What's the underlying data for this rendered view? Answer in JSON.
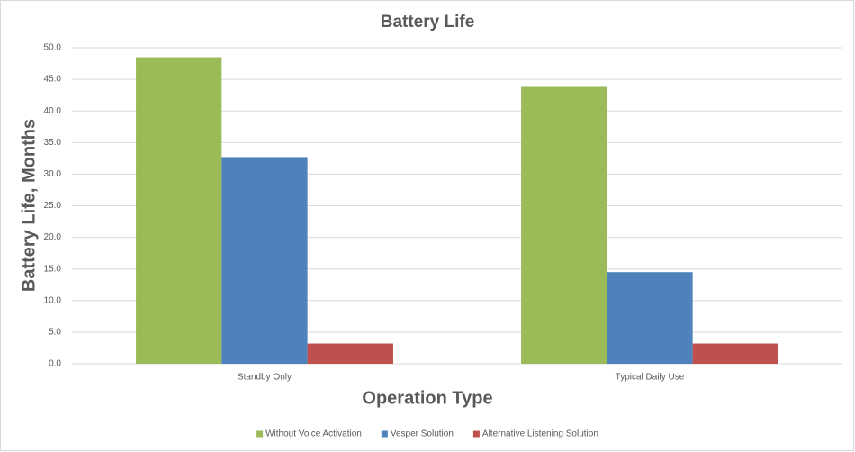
{
  "chart_data": {
    "type": "bar",
    "title": "Battery Life",
    "x_label": "Operation Type",
    "y_label": "Battery Life, Months",
    "categories": [
      "Standby Only",
      "Typical Daily Use"
    ],
    "series": [
      {
        "name": "Without Voice Activation",
        "color": "#9bbb59",
        "values": [
          48.5,
          43.8
        ]
      },
      {
        "name": "Vesper Solution",
        "color": "#4f81bd",
        "values": [
          32.7,
          14.5
        ]
      },
      {
        "name": "Alternative Listening Solution",
        "color": "#c0504d",
        "values": [
          3.2,
          3.2
        ]
      }
    ],
    "ylim": [
      0,
      50
    ],
    "yticks": [
      {
        "value": 0,
        "label": "0.0"
      },
      {
        "value": 5,
        "label": "5.0"
      },
      {
        "value": 10,
        "label": "10.0"
      },
      {
        "value": 15,
        "label": "15.0"
      },
      {
        "value": 20,
        "label": "20.0"
      },
      {
        "value": 25,
        "label": "25.0"
      },
      {
        "value": 30,
        "label": "30.0"
      },
      {
        "value": 35,
        "label": "35.0"
      },
      {
        "value": 40,
        "label": "40.0"
      },
      {
        "value": 45,
        "label": "45.0"
      },
      {
        "value": 50,
        "label": "50.0"
      }
    ],
    "grid": true,
    "legend": "bottom"
  }
}
